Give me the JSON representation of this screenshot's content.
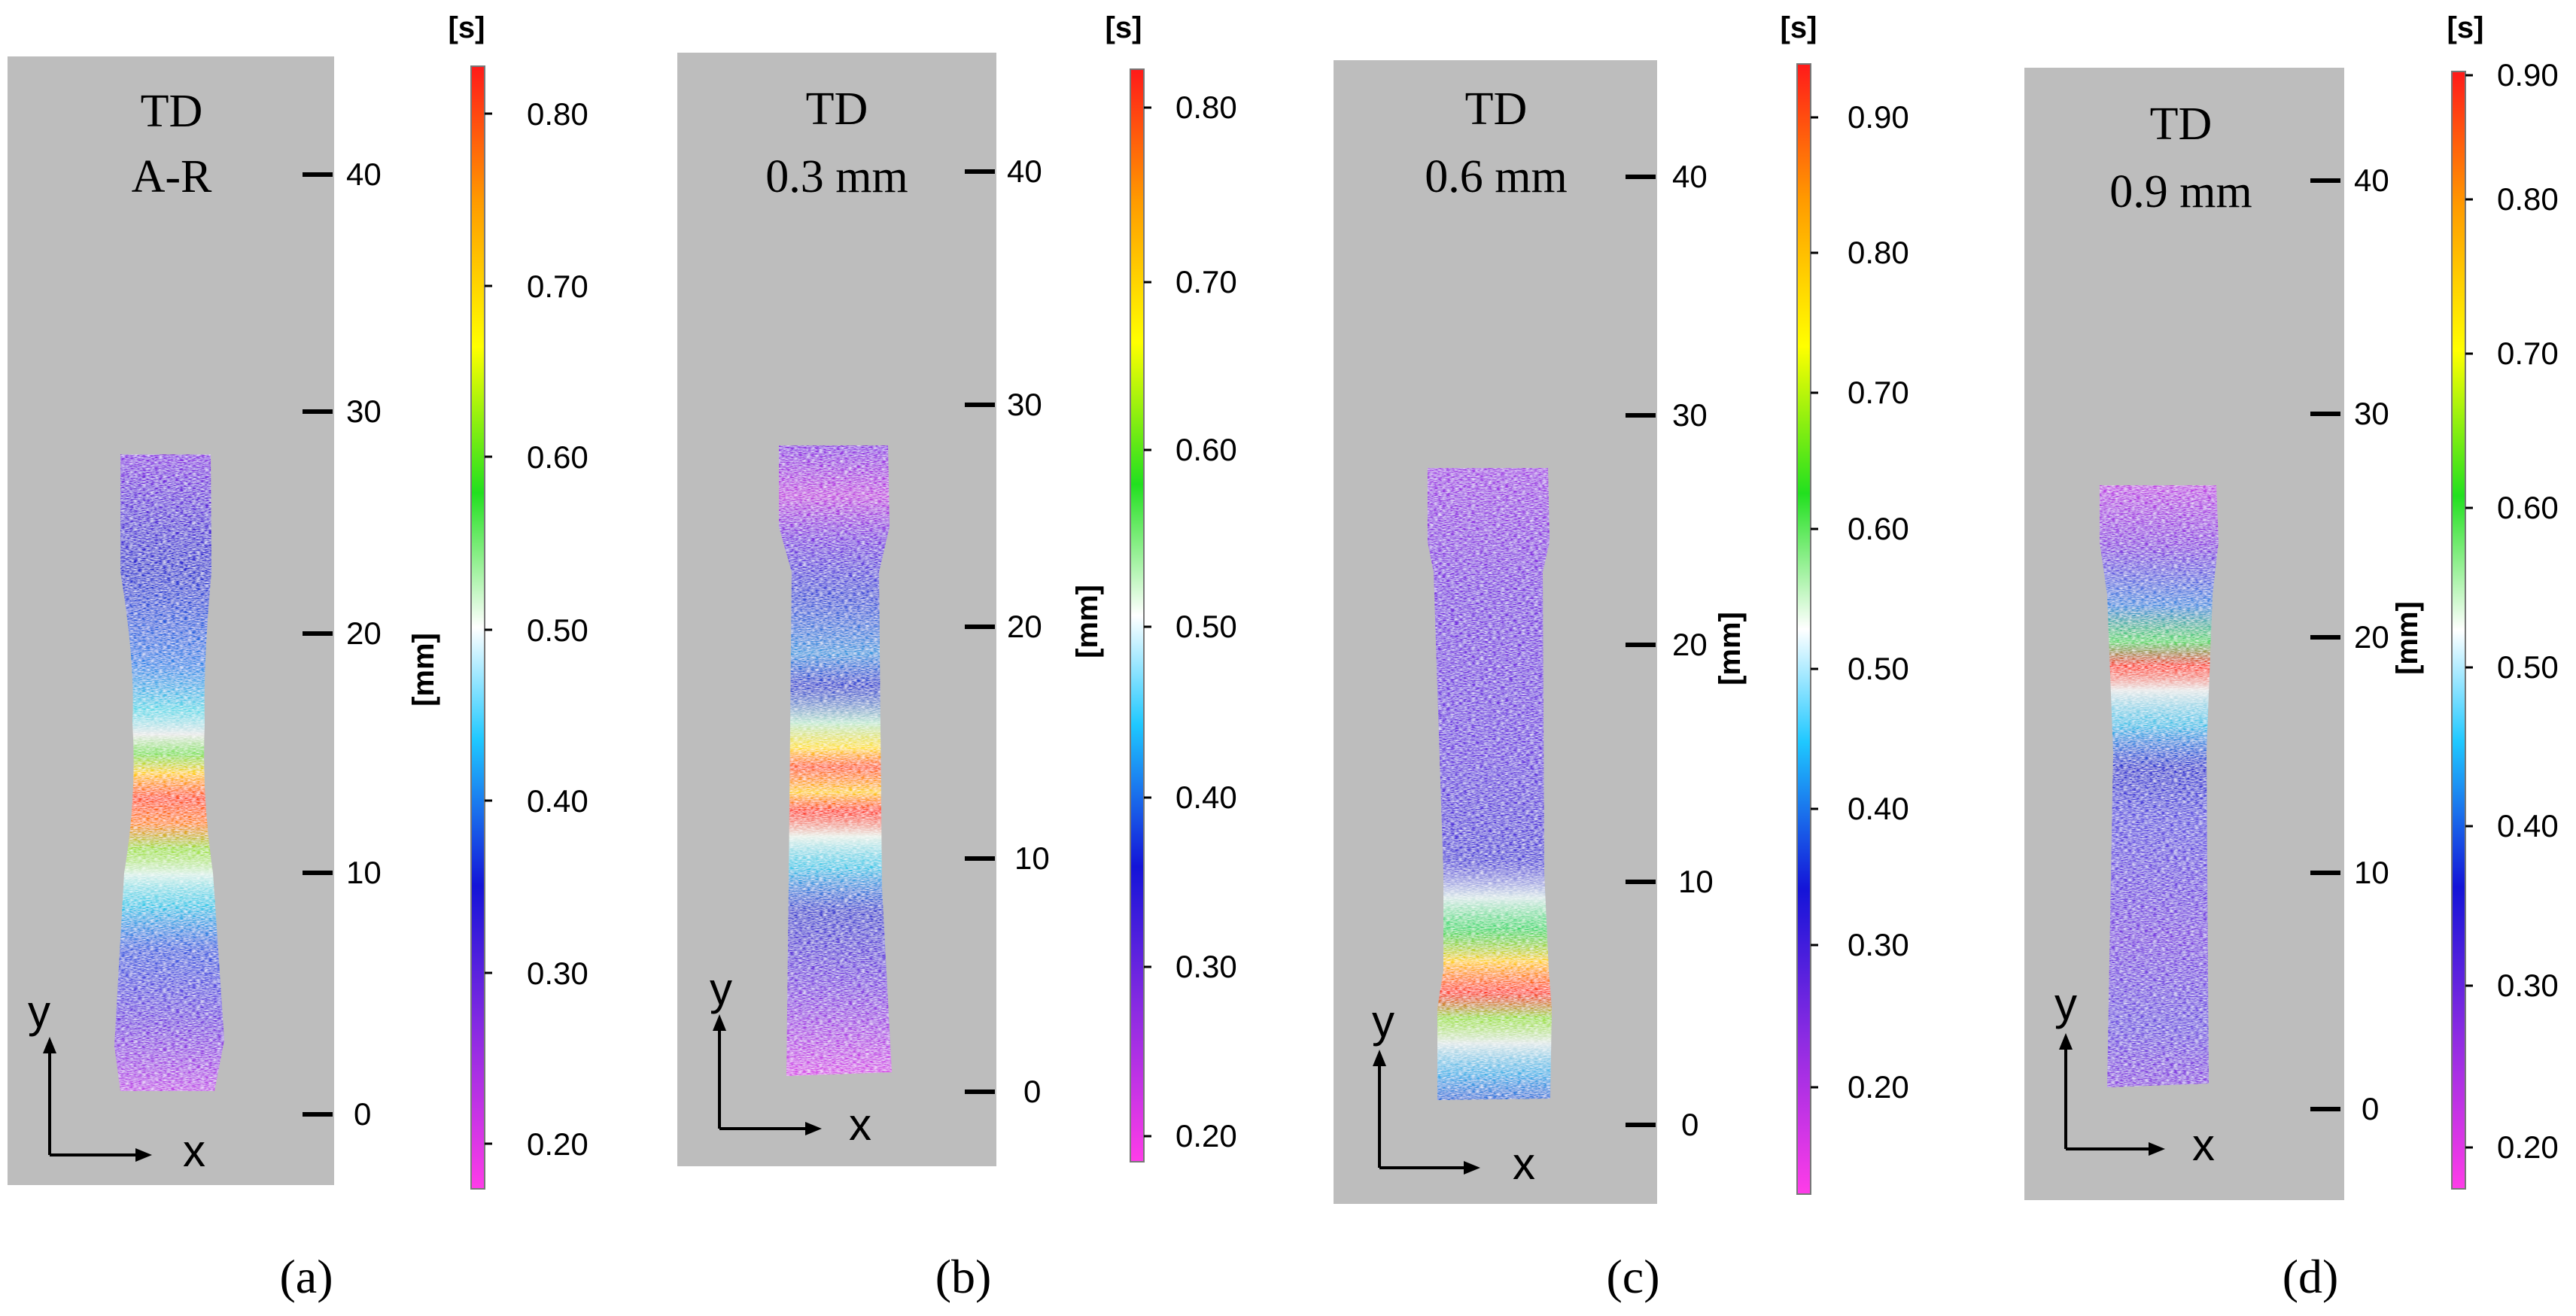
{
  "panels": [
    {
      "id": "a",
      "caption": "(a)",
      "title_lines": [
        "TD",
        "A-R"
      ],
      "y_axis": {
        "unit": "[mm]",
        "ticks": [
          0,
          10,
          20,
          30,
          40
        ]
      },
      "colorbar": {
        "unit": "[s]",
        "min": 0.18,
        "max": 0.83,
        "ticks": [
          "0.20",
          "0.30",
          "0.40",
          "0.50",
          "0.60",
          "0.70",
          "0.80"
        ]
      },
      "axes_arrows": {
        "x": "x",
        "y": "y"
      }
    },
    {
      "id": "b",
      "caption": "(b)",
      "title_lines": [
        "TD",
        "0.3 mm"
      ],
      "y_axis": {
        "unit": "[mm]",
        "ticks": [
          0,
          10,
          20,
          30,
          40
        ]
      },
      "colorbar": {
        "unit": "[s]",
        "min": 0.18,
        "max": 0.83,
        "ticks": [
          "0.20",
          "0.30",
          "0.40",
          "0.50",
          "0.60",
          "0.70",
          "0.80"
        ]
      },
      "axes_arrows": {
        "x": "x",
        "y": "y"
      }
    },
    {
      "id": "c",
      "caption": "(c)",
      "title_lines": [
        "TD",
        "0.6 mm"
      ],
      "y_axis": {
        "unit": "[mm]",
        "ticks": [
          0,
          10,
          20,
          30,
          40
        ]
      },
      "colorbar": {
        "unit": "[s]",
        "min": 0.1,
        "max": 0.95,
        "ticks": [
          "0.20",
          "0.30",
          "0.40",
          "0.50",
          "0.60",
          "0.70",
          "0.80",
          "0.90"
        ]
      },
      "axes_arrows": {
        "x": "x",
        "y": "y"
      }
    },
    {
      "id": "d",
      "caption": "(d)",
      "title_lines": [
        "TD",
        "0.9 mm"
      ],
      "y_axis": {
        "unit": "[mm]",
        "ticks": [
          0,
          10,
          20,
          30,
          40
        ]
      },
      "colorbar": {
        "unit": "[s]",
        "min": 0.17,
        "max": 0.91,
        "ticks": [
          "0.20",
          "0.30",
          "0.40",
          "0.50",
          "0.60",
          "0.70",
          "0.80",
          "0.90"
        ]
      },
      "axes_arrows": {
        "x": "x",
        "y": "y"
      }
    }
  ],
  "colors": {
    "background_panel": "#bdbdbd",
    "colorbar_stops": [
      "#ff3ce8",
      "#8a2be2",
      "#1414d8",
      "#1fc8ff",
      "#ffffff",
      "#22e01f",
      "#ffff00",
      "#ff9a00",
      "#ff1a1a"
    ]
  }
}
